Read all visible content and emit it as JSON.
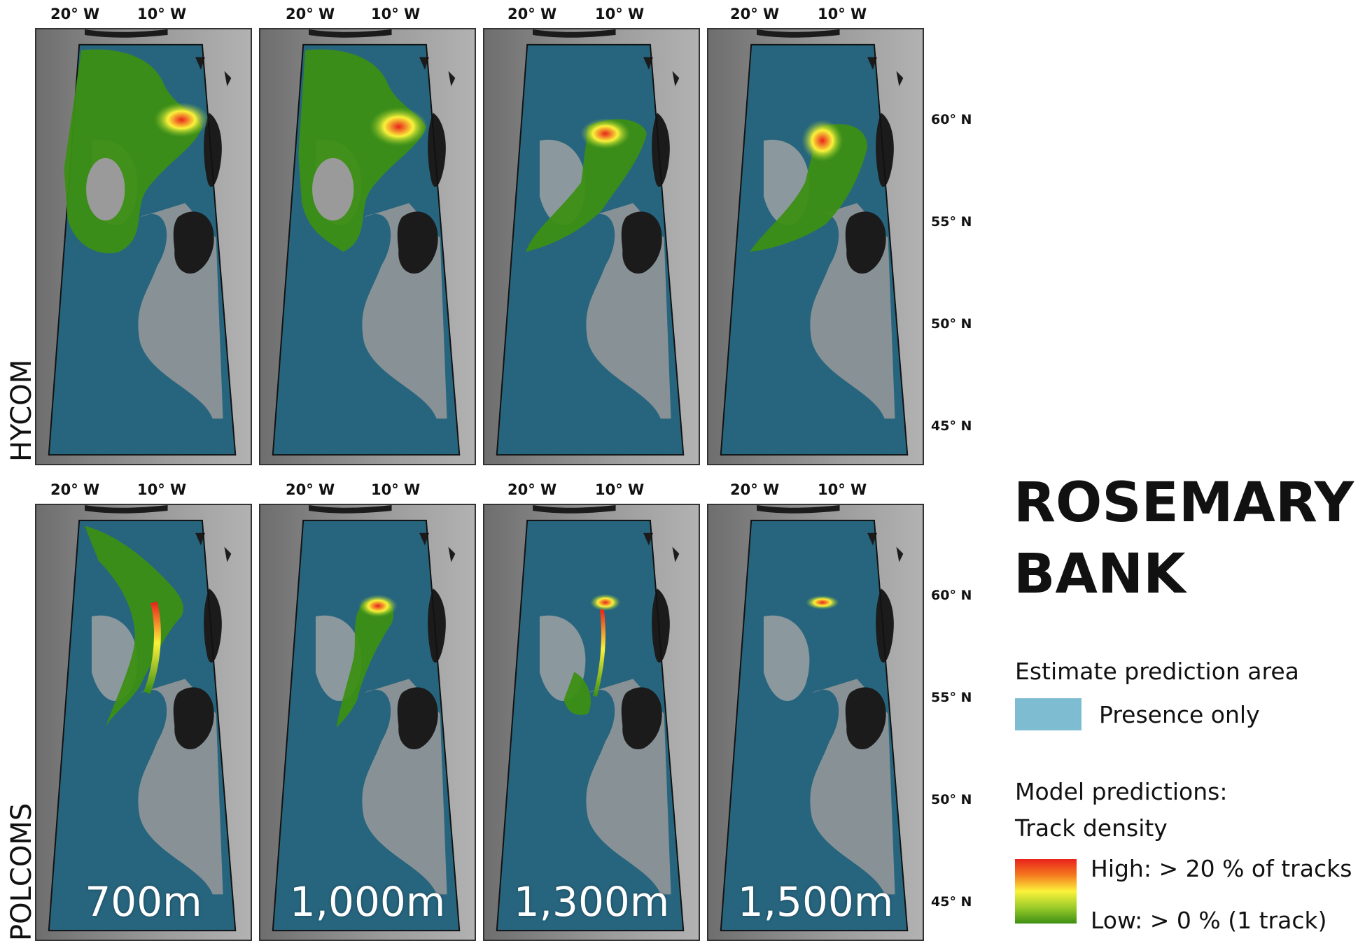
{
  "longitude_labels": [
    "20° W",
    "10° W"
  ],
  "latitude_labels_top": [
    "60° N",
    "55° N",
    "50° N",
    "45° N"
  ],
  "latitude_labels_bottom": [
    "60° N",
    "55° N",
    "50° N",
    "45° N"
  ],
  "row_labels": [
    "HYCOM",
    "POLCOMS"
  ],
  "depth_labels": [
    "700m",
    "1,000m",
    "1,300m",
    "1,500m"
  ],
  "legend": {
    "title_line1": "ROSEMARY",
    "title_line2": "BANK",
    "estimate_heading": "Estimate prediction area",
    "presence_label": "Presence only",
    "model_heading": "Model predictions:",
    "track_density": "Track density",
    "high_label": "High: > 20 % of tracks",
    "low_label": "Low: > 0 % (1 track)"
  },
  "colors": {
    "ocean": "#27657e",
    "presence": "#7ebcd1",
    "land": "#1b1b1b",
    "density_high": "#e8231b",
    "density_mid": "#fbf23a",
    "density_low": "#3c8f14"
  }
}
